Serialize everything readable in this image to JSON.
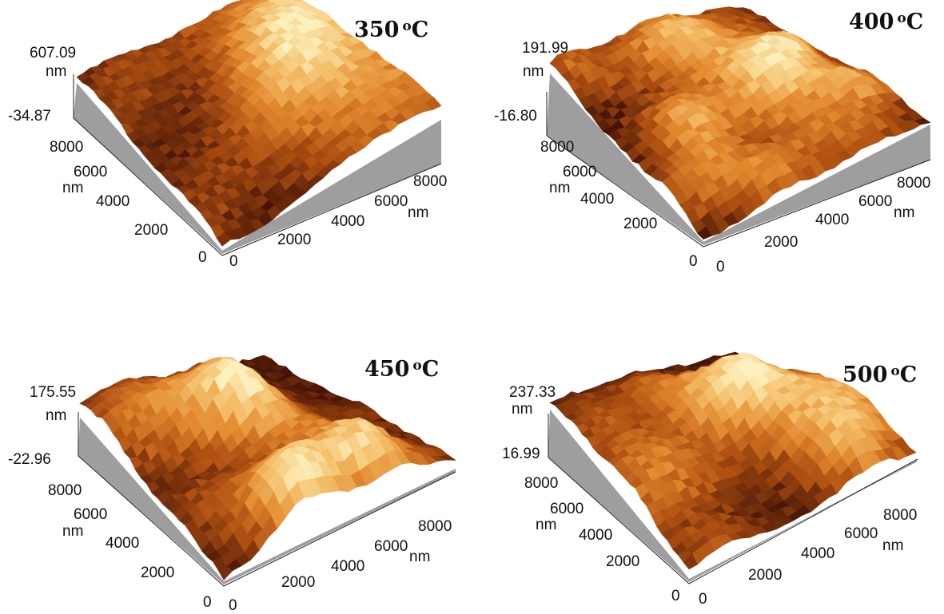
{
  "panels": [
    {
      "title_value": "350",
      "title_unit_sup": "o",
      "title_unit": "C",
      "z_max": "607.09",
      "z_unit": "nm",
      "z_min": "-34.87",
      "y_ticks": [
        "8000",
        "6000",
        "4000",
        "2000",
        "0"
      ],
      "y_unit": "nm",
      "x_ticks": [
        "0",
        "2000",
        "4000",
        "6000",
        "8000"
      ],
      "x_unit": "nm",
      "seed": 3,
      "relief": "smooth waves"
    },
    {
      "title_value": "400",
      "title_unit_sup": "o",
      "title_unit": "C",
      "z_max": "191.99",
      "z_unit": "nm",
      "z_min": "-16.80",
      "y_ticks": [
        "8000",
        "6000",
        "4000",
        "2000",
        "0"
      ],
      "y_unit": "nm",
      "x_ticks": [
        "0",
        "2000",
        "4000",
        "6000",
        "8000"
      ],
      "x_unit": "nm",
      "seed": 11,
      "relief": "rough grains"
    },
    {
      "title_value": "450",
      "title_unit_sup": "o",
      "title_unit": "C",
      "z_max": "175.55",
      "z_unit": "nm",
      "z_min": "-22.96",
      "y_ticks": [
        "8000",
        "6000",
        "4000",
        "2000",
        "0"
      ],
      "y_unit": "nm",
      "x_ticks": [
        "0",
        "2000",
        "4000",
        "6000",
        "8000"
      ],
      "x_unit": "nm",
      "seed": 23,
      "relief": "tall spikes"
    },
    {
      "title_value": "500",
      "title_unit_sup": "o",
      "title_unit": "C",
      "z_max": "237.33",
      "z_unit": "nm",
      "z_min": "16.99",
      "y_ticks": [
        "8000",
        "6000",
        "4000",
        "2000",
        "0"
      ],
      "y_unit": "nm",
      "x_ticks": [
        "0",
        "2000",
        "4000",
        "6000",
        "8000"
      ],
      "x_unit": "nm",
      "seed": 37,
      "relief": "large grains"
    }
  ],
  "colors": {
    "surface_light": "#fbe9b0",
    "surface_mid": "#e89a3c",
    "surface_dark": "#5a1e08",
    "wall": "#a9a9a9"
  }
}
